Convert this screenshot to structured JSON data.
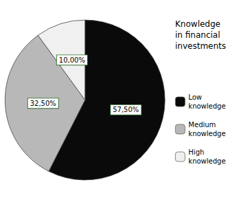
{
  "chart_data": {
    "type": "pie",
    "title": "Knowledge\nin financial\ninvestments",
    "categories": [
      "Low\nknowledge",
      "Medium\nknowledge",
      "High\nknowledge"
    ],
    "values": [
      57.5,
      32.5,
      10.0
    ],
    "value_labels": [
      "57,50%",
      "32,50%",
      "10,00%"
    ],
    "colors": [
      "#0a0a0a",
      "#b8b8b8",
      "#f0f0f0"
    ],
    "data_labels": true,
    "legend": "right"
  }
}
